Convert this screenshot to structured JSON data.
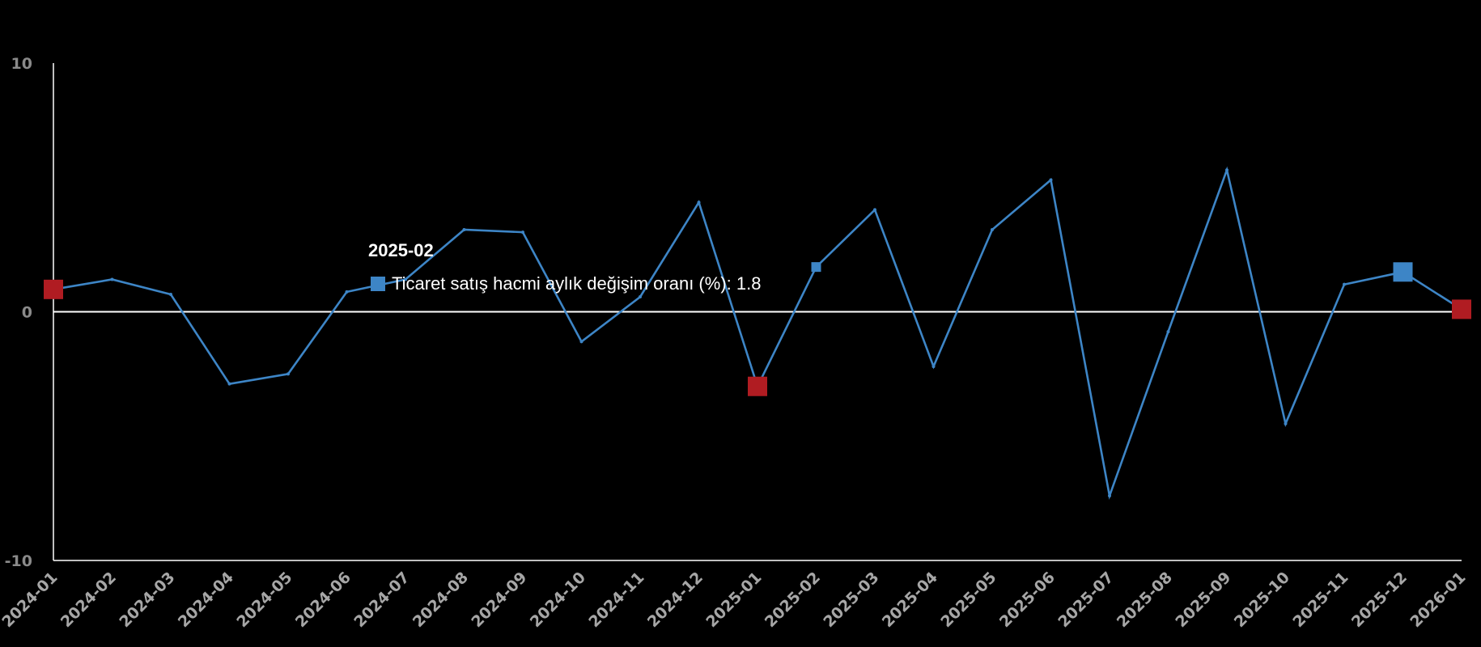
{
  "chart_data": {
    "type": "line",
    "title": "",
    "xlabel": "",
    "ylabel": "",
    "ylim": [
      -10,
      10
    ],
    "yticks": [
      "10",
      "0",
      "-10"
    ],
    "grid": false,
    "legend": "none",
    "categories": [
      "2024-01",
      "2024-02",
      "2024-03",
      "2024-04",
      "2024-05",
      "2024-06",
      "2024-07",
      "2024-08",
      "2024-09",
      "2024-10",
      "2024-11",
      "2024-12",
      "2025-01",
      "2025-02",
      "2025-03",
      "2025-04",
      "2025-05",
      "2025-06",
      "2025-07",
      "2025-08",
      "2025-09",
      "2025-10",
      "2025-11",
      "2025-12",
      "2026-01"
    ],
    "series": [
      {
        "name": "Ticaret satış hacmi aylık değişim oranı (%)",
        "color": "#3d85c6",
        "values": [
          0.9,
          1.3,
          0.7,
          -2.9,
          -2.5,
          0.8,
          1.3,
          3.3,
          3.2,
          -1.2,
          0.6,
          4.4,
          -3.0,
          1.8,
          4.1,
          -2.2,
          3.3,
          5.3,
          -7.4,
          -0.8,
          5.7,
          -4.5,
          1.1,
          1.6,
          0.1
        ]
      }
    ],
    "markers": [
      {
        "category": "2024-01",
        "value": 0.9,
        "color": "#b01c22"
      },
      {
        "category": "2025-01",
        "value": -3.0,
        "color": "#b01c22"
      },
      {
        "category": "2025-12",
        "value": 1.6,
        "color": "#3d85c6"
      },
      {
        "category": "2026-01",
        "value": 0.1,
        "color": "#b01c22"
      }
    ],
    "tooltip": {
      "title": "2025-02",
      "label": "Ticaret satış hacmi aylık değişim oranı (%): 1.8",
      "color": "#3d85c6"
    }
  }
}
